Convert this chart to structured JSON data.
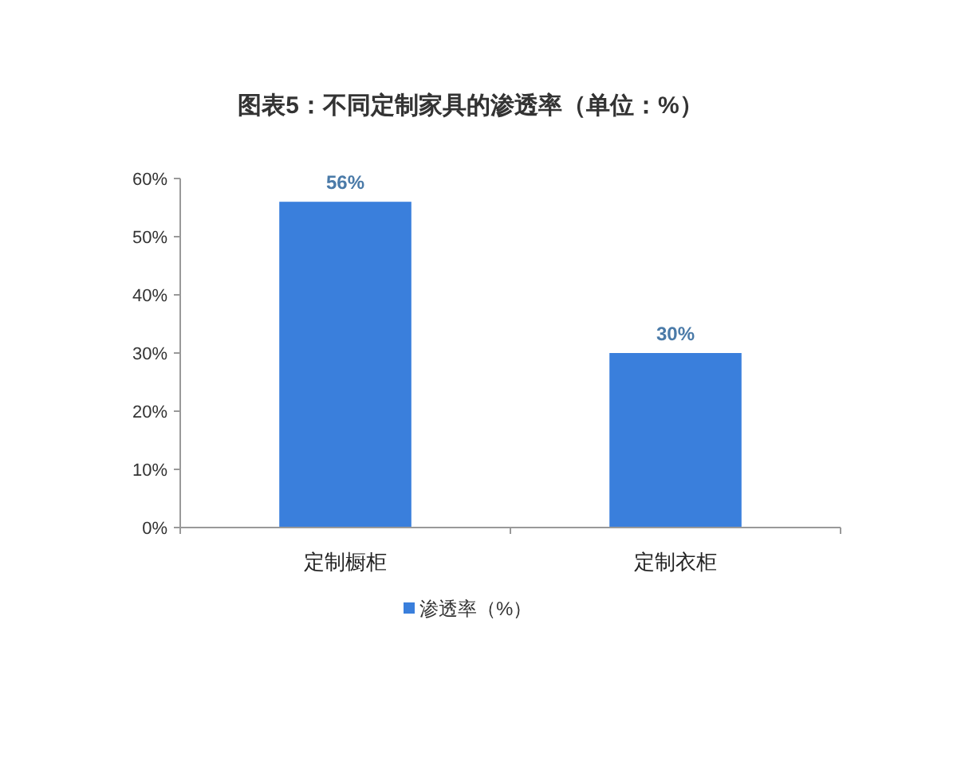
{
  "chart_data": {
    "type": "bar",
    "title": "图表5：不同定制家具的渗透率（单位：%）",
    "categories": [
      "定制橱柜",
      "定制衣柜"
    ],
    "series": [
      {
        "name": "渗透率（%）",
        "color": "#3a7fdc",
        "values": [
          56,
          30
        ],
        "value_labels": [
          "56%",
          "30%"
        ]
      }
    ],
    "ylim": [
      0,
      60
    ],
    "yticks": [
      {
        "value": 0,
        "label": "0%"
      },
      {
        "value": 10,
        "label": "10%"
      },
      {
        "value": 20,
        "label": "20%"
      },
      {
        "value": 30,
        "label": "30%"
      },
      {
        "value": 40,
        "label": "40%"
      },
      {
        "value": 50,
        "label": "50%"
      },
      {
        "value": 60,
        "label": "60%"
      }
    ],
    "legend": "bottom"
  }
}
